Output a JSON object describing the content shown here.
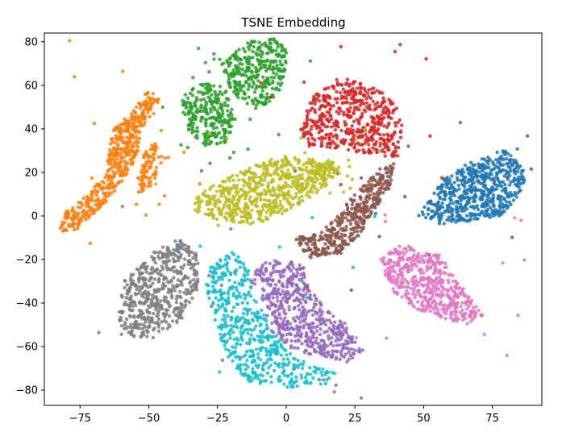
{
  "chart_data": {
    "type": "scatter",
    "title": "TSNE Embedding",
    "xlabel": "",
    "ylabel": "",
    "xlim": [
      -88,
      93
    ],
    "ylim": [
      -87,
      84
    ],
    "xticks": [
      -75,
      -50,
      -25,
      0,
      25,
      50,
      75
    ],
    "xtick_labels": [
      "−75",
      "−50",
      "−25",
      "0",
      "25",
      "50",
      "75"
    ],
    "yticks": [
      -80,
      -60,
      -40,
      -20,
      0,
      20,
      40,
      60,
      80
    ],
    "ytick_labels": [
      "−80",
      "−60",
      "−40",
      "−20",
      "0",
      "20",
      "40",
      "60",
      "80"
    ],
    "grid": false,
    "legend": "none",
    "clusters": [
      {
        "color": "#1f77b4",
        "polygon": [
          [
            48,
            0
          ],
          [
            57,
            17
          ],
          [
            66,
            24
          ],
          [
            80,
            31
          ],
          [
            88,
            20
          ],
          [
            84,
            8
          ],
          [
            78,
            0
          ],
          [
            68,
            -2
          ],
          [
            58,
            -4
          ]
        ],
        "count": 600
      },
      {
        "color": "#ff7f0e",
        "polygon": [
          [
            -82,
            -8
          ],
          [
            -76,
            -6
          ],
          [
            -68,
            3
          ],
          [
            -60,
            15
          ],
          [
            -54,
            28
          ],
          [
            -52,
            42
          ],
          [
            -47,
            48
          ],
          [
            -46,
            56
          ],
          [
            -51,
            57
          ],
          [
            -56,
            48
          ],
          [
            -63,
            40
          ],
          [
            -66,
            20
          ],
          [
            -72,
            10
          ],
          [
            -80,
            2
          ],
          [
            -83,
            -5
          ]
        ],
        "count": 480
      },
      {
        "color": "#ff7f0e",
        "polygon": [
          [
            -54,
            10
          ],
          [
            -48,
            14
          ],
          [
            -46,
            30
          ],
          [
            -48,
            34
          ],
          [
            -52,
            28
          ]
        ],
        "count": 80
      },
      {
        "color": "#2ca02c",
        "polygon": [
          [
            -24,
            70
          ],
          [
            -14,
            80
          ],
          [
            -5,
            82
          ],
          [
            1,
            76
          ],
          [
            -2,
            58
          ],
          [
            -8,
            50
          ],
          [
            -16,
            52
          ],
          [
            -20,
            58
          ]
        ],
        "count": 340
      },
      {
        "color": "#2ca02c",
        "polygon": [
          [
            -38,
            55
          ],
          [
            -30,
            62
          ],
          [
            -22,
            58
          ],
          [
            -19,
            46
          ],
          [
            -21,
            34
          ],
          [
            -29,
            32
          ],
          [
            -37,
            40
          ]
        ],
        "count": 260
      },
      {
        "color": "#d62728",
        "polygon": [
          [
            5,
            40
          ],
          [
            10,
            56
          ],
          [
            20,
            64
          ],
          [
            30,
            60
          ],
          [
            40,
            53
          ],
          [
            43,
            38
          ],
          [
            40,
            27
          ],
          [
            30,
            28
          ],
          [
            20,
            31
          ],
          [
            8,
            32
          ]
        ],
        "count": 520
      },
      {
        "color": "#9467bd",
        "polygon": [
          [
            -14,
            -28
          ],
          [
            -6,
            -20
          ],
          [
            6,
            -22
          ],
          [
            9,
            -34
          ],
          [
            14,
            -42
          ],
          [
            22,
            -50
          ],
          [
            28,
            -62
          ],
          [
            22,
            -68
          ],
          [
            10,
            -64
          ],
          [
            0,
            -60
          ],
          [
            -6,
            -52
          ],
          [
            -8,
            -40
          ]
        ],
        "count": 520
      },
      {
        "color": "#8c564b",
        "polygon": [
          [
            3,
            -10
          ],
          [
            12,
            -8
          ],
          [
            20,
            2
          ],
          [
            26,
            12
          ],
          [
            34,
            22
          ],
          [
            40,
            25
          ],
          [
            38,
            14
          ],
          [
            32,
            2
          ],
          [
            26,
            -10
          ],
          [
            18,
            -18
          ],
          [
            8,
            -19
          ]
        ],
        "count": 420
      },
      {
        "color": "#e377c2",
        "polygon": [
          [
            34,
            -20
          ],
          [
            42,
            -13
          ],
          [
            56,
            -18
          ],
          [
            62,
            -30
          ],
          [
            68,
            -38
          ],
          [
            72,
            -47
          ],
          [
            65,
            -50
          ],
          [
            55,
            -46
          ],
          [
            46,
            -42
          ],
          [
            38,
            -34
          ]
        ],
        "count": 500
      },
      {
        "color": "#7f7f7f",
        "polygon": [
          [
            -61,
            -44
          ],
          [
            -59,
            -30
          ],
          [
            -50,
            -18
          ],
          [
            -40,
            -10
          ],
          [
            -32,
            -16
          ],
          [
            -32,
            -34
          ],
          [
            -38,
            -48
          ],
          [
            -48,
            -56
          ],
          [
            -60,
            -55
          ]
        ],
        "count": 520
      },
      {
        "color": "#bcbd22",
        "polygon": [
          [
            -34,
            8
          ],
          [
            -24,
            16
          ],
          [
            -14,
            22
          ],
          [
            -2,
            28
          ],
          [
            10,
            26
          ],
          [
            18,
            22
          ],
          [
            16,
            14
          ],
          [
            6,
            6
          ],
          [
            -2,
            0
          ],
          [
            -12,
            -4
          ],
          [
            -24,
            -2
          ],
          [
            -34,
            2
          ]
        ],
        "count": 620
      },
      {
        "color": "#bcbd22",
        "polygon": [
          [
            10,
            22
          ],
          [
            16,
            26
          ],
          [
            20,
            20
          ],
          [
            14,
            14
          ]
        ],
        "count": 40
      },
      {
        "color": "#17becf",
        "polygon": [
          [
            -28,
            -24
          ],
          [
            -20,
            -16
          ],
          [
            -14,
            -22
          ],
          [
            -12,
            -36
          ],
          [
            -6,
            -50
          ],
          [
            0,
            -62
          ],
          [
            8,
            -68
          ],
          [
            18,
            -72
          ],
          [
            15,
            -77
          ],
          [
            0,
            -79
          ],
          [
            -14,
            -76
          ],
          [
            -22,
            -64
          ],
          [
            -26,
            -48
          ],
          [
            -30,
            -36
          ]
        ],
        "count": 520
      }
    ]
  }
}
